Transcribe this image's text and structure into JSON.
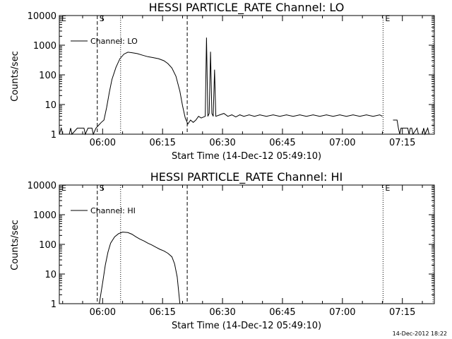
{
  "page": {
    "background": "#ffffff",
    "ink": "#000000",
    "stamp": "14-Dec-2012 18:22"
  },
  "chart_data": [
    {
      "type": "line",
      "title": "HESSI PARTICLE_RATE Channel: LO",
      "xlabel": "Start Time (14-Dec-12 05:49:10)",
      "ylabel": "Counts/sec",
      "yscale": "log",
      "ylim": [
        1,
        10000
      ],
      "xlim": [
        "05:49:10",
        "07:23:00"
      ],
      "grid": false,
      "legend": {
        "label": "Channel: LO",
        "placement": "top-left"
      },
      "xticks": [
        "06:00",
        "06:15",
        "06:30",
        "06:45",
        "07:00",
        "07:15"
      ],
      "yticks": [
        "1",
        "10",
        "100",
        "1000",
        "10000"
      ],
      "markers": [
        {
          "label": "E",
          "time": "05:49:10",
          "style": "none"
        },
        {
          "label": "S",
          "time": "05:58:40",
          "style": "dashed"
        },
        {
          "label": "",
          "time": "06:04:30",
          "style": "dotted"
        },
        {
          "label": "",
          "time": "06:21:10",
          "style": "dashed"
        },
        {
          "label": "E",
          "time": "07:10:10",
          "style": "dotted"
        },
        {
          "label": "",
          "time": "07:22:40",
          "style": "dotted"
        }
      ],
      "series": [
        {
          "name": "Channel: LO",
          "segments": [
            [
              [
                "05:49:10",
                1
              ],
              [
                "05:49:40",
                1.6
              ],
              [
                "05:50:00",
                1
              ],
              [
                "05:51:40",
                1
              ],
              [
                "05:52:00",
                1.6
              ],
              [
                "05:52:20",
                1
              ],
              [
                "05:53:40",
                1.6
              ],
              [
                "05:55:20",
                1.6
              ],
              [
                "05:55:40",
                1
              ],
              [
                "05:56:20",
                1.6
              ],
              [
                "05:57:20",
                1.6
              ],
              [
                "05:57:40",
                1
              ],
              [
                "05:58:20",
                1.6
              ],
              [
                "05:59:00",
                2
              ],
              [
                "05:59:40",
                2.5
              ],
              [
                "06:00:20",
                3
              ],
              [
                "06:01:00",
                8
              ],
              [
                "06:01:40",
                25
              ],
              [
                "06:02:20",
                70
              ],
              [
                "06:03:20",
                180
              ],
              [
                "06:04:20",
                350
              ],
              [
                "06:05:20",
                500
              ],
              [
                "06:06:20",
                580
              ],
              [
                "06:07:20",
                560
              ],
              [
                "06:08:40",
                520
              ],
              [
                "06:10:00",
                460
              ],
              [
                "06:11:20",
                410
              ],
              [
                "06:12:40",
                380
              ],
              [
                "06:14:00",
                350
              ],
              [
                "06:15:20",
                300
              ],
              [
                "06:16:20",
                240
              ],
              [
                "06:17:20",
                170
              ],
              [
                "06:18:20",
                90
              ],
              [
                "06:19:20",
                28
              ],
              [
                "06:20:00",
                9
              ],
              [
                "06:20:40",
                3.5
              ],
              [
                "06:21:20",
                2.2
              ],
              [
                "06:22:00",
                3
              ],
              [
                "06:22:40",
                2.5
              ],
              [
                "06:23:20",
                3
              ],
              [
                "06:24:00",
                4
              ],
              [
                "06:24:40",
                3.5
              ],
              [
                "06:25:40",
                4
              ],
              [
                "06:26:00",
                1800
              ],
              [
                "06:26:20",
                4
              ],
              [
                "06:26:40",
                5
              ],
              [
                "06:27:00",
                600
              ],
              [
                "06:27:20",
                5
              ],
              [
                "06:27:40",
                4
              ],
              [
                "06:28:00",
                150
              ],
              [
                "06:28:20",
                4
              ],
              [
                "06:29:20",
                4.5
              ],
              [
                "06:30:20",
                5
              ],
              [
                "06:31:20",
                4
              ],
              [
                "06:32:20",
                4.5
              ],
              [
                "06:33:20",
                3.8
              ],
              [
                "06:34:20",
                4.5
              ],
              [
                "06:35:20",
                4
              ],
              [
                "06:36:40",
                4.5
              ],
              [
                "06:38:00",
                4
              ],
              [
                "06:39:20",
                4.5
              ],
              [
                "06:41:00",
                4
              ],
              [
                "06:42:40",
                4.5
              ],
              [
                "06:44:20",
                4
              ],
              [
                "06:46:00",
                4.5
              ],
              [
                "06:47:40",
                4
              ],
              [
                "06:49:20",
                4.5
              ],
              [
                "06:51:00",
                4
              ],
              [
                "06:52:40",
                4.5
              ],
              [
                "06:54:20",
                4
              ],
              [
                "06:56:00",
                4.5
              ],
              [
                "06:57:40",
                4
              ],
              [
                "06:59:20",
                4.5
              ],
              [
                "07:01:00",
                4
              ],
              [
                "07:02:40",
                4.5
              ],
              [
                "07:04:20",
                4
              ],
              [
                "07:06:00",
                4.5
              ],
              [
                "07:07:40",
                4
              ],
              [
                "07:09:20",
                4.5
              ],
              [
                "07:10:00",
                4
              ]
            ],
            [
              [
                "07:12:40",
                3
              ],
              [
                "07:13:40",
                3
              ],
              [
                "07:14:00",
                1.6
              ],
              [
                "07:14:20",
                1
              ],
              [
                "07:14:40",
                1.6
              ],
              [
                "07:16:20",
                1.6
              ],
              [
                "07:16:40",
                1
              ],
              [
                "07:17:00",
                1.6
              ],
              [
                "07:17:20",
                1.6
              ],
              [
                "07:17:40",
                1
              ],
              [
                "07:18:40",
                1.6
              ],
              [
                "07:19:00",
                1
              ],
              [
                "07:20:00",
                1
              ],
              [
                "07:20:20",
                1.6
              ],
              [
                "07:20:40",
                1
              ],
              [
                "07:21:20",
                1.6
              ],
              [
                "07:21:40",
                1
              ],
              [
                "07:22:40",
                1
              ]
            ]
          ]
        }
      ]
    },
    {
      "type": "line",
      "title": "HESSI PARTICLE_RATE Channel: HI",
      "xlabel": "Start Time (14-Dec-12 05:49:10)",
      "ylabel": "Counts/sec",
      "yscale": "log",
      "ylim": [
        1,
        10000
      ],
      "xlim": [
        "05:49:10",
        "07:23:00"
      ],
      "grid": false,
      "legend": {
        "label": "Channel: HI",
        "placement": "top-left"
      },
      "xticks": [
        "06:00",
        "06:15",
        "06:30",
        "06:45",
        "07:00",
        "07:15"
      ],
      "yticks": [
        "1",
        "10",
        "100",
        "1000",
        "10000"
      ],
      "markers": [
        {
          "label": "E",
          "time": "05:49:10",
          "style": "none"
        },
        {
          "label": "S",
          "time": "05:58:40",
          "style": "dashed"
        },
        {
          "label": "",
          "time": "06:04:30",
          "style": "dotted"
        },
        {
          "label": "",
          "time": "06:21:10",
          "style": "dashed"
        },
        {
          "label": "E",
          "time": "07:10:10",
          "style": "dotted"
        },
        {
          "label": "",
          "time": "07:22:40",
          "style": "dotted"
        }
      ],
      "series": [
        {
          "name": "Channel: HI",
          "segments": [
            [
              [
                "05:59:10",
                1
              ],
              [
                "06:00:00",
                5
              ],
              [
                "06:00:40",
                20
              ],
              [
                "06:01:20",
                55
              ],
              [
                "06:02:00",
                110
              ],
              [
                "06:03:00",
                180
              ],
              [
                "06:04:00",
                230
              ],
              [
                "06:05:00",
                260
              ],
              [
                "06:06:20",
                250
              ],
              [
                "06:07:20",
                220
              ],
              [
                "06:08:20",
                180
              ],
              [
                "06:09:20",
                150
              ],
              [
                "06:10:20",
                130
              ],
              [
                "06:11:20",
                110
              ],
              [
                "06:12:20",
                95
              ],
              [
                "06:13:20",
                80
              ],
              [
                "06:14:20",
                68
              ],
              [
                "06:15:20",
                60
              ],
              [
                "06:16:20",
                50
              ],
              [
                "06:17:20",
                38
              ],
              [
                "06:18:00",
                22
              ],
              [
                "06:18:40",
                8
              ],
              [
                "06:19:20",
                1
              ]
            ]
          ]
        }
      ]
    }
  ]
}
